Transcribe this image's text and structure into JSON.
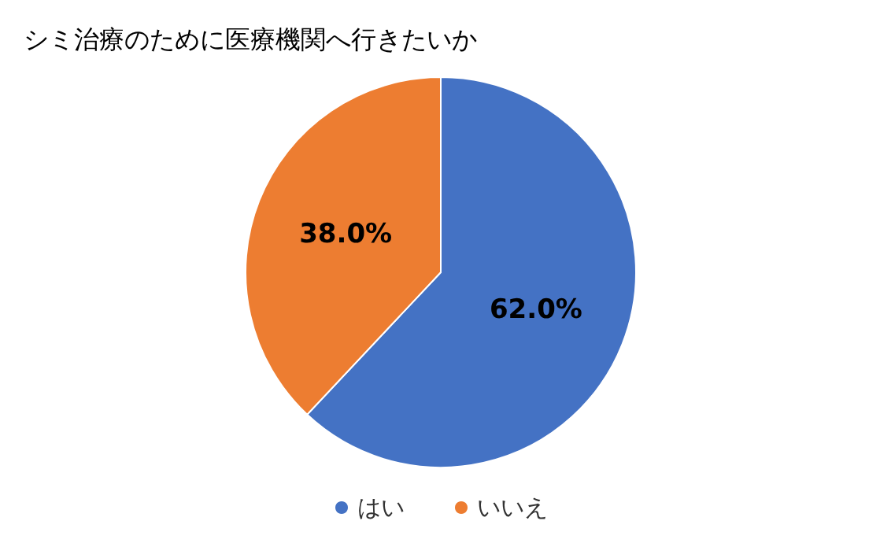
{
  "chart_data": {
    "type": "pie",
    "title": "シミ治療のために医療機関へ行きたいか",
    "categories": [
      "はい",
      "いいえ"
    ],
    "values": [
      62.0,
      38.0
    ],
    "colors": [
      "#4472c4",
      "#ed7d31"
    ],
    "value_labels": [
      "62.0%",
      "38.0%"
    ],
    "legend": "bottom"
  }
}
